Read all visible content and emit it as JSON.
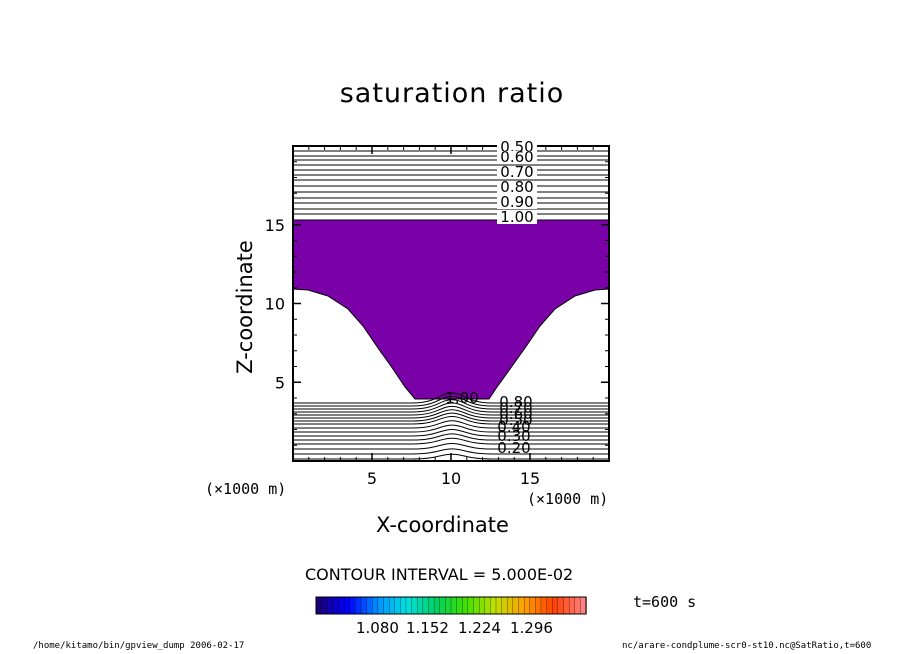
{
  "chart_data": {
    "type": "contour",
    "title": "saturation ratio",
    "xlabel": "X-coordinate",
    "ylabel": "Z-coordinate",
    "x_unit": "(×1000 m)",
    "y_unit": "(×1000 m)",
    "xlim": [
      0,
      20
    ],
    "ylim": [
      0,
      20
    ],
    "x_ticks": [
      5,
      10,
      15
    ],
    "y_ticks": [
      5,
      10,
      15
    ],
    "contour_interval_text": "CONTOUR INTERVAL = 5.000E-02",
    "upper_contour_labels": [
      "0.50",
      "0.60",
      "0.70",
      "0.80",
      "0.90",
      "1.00"
    ],
    "lower_contour_labels": [
      "1.00",
      "0.80",
      "0.70",
      "0.60",
      "0.50",
      "0.40",
      "0.30",
      "0.20"
    ],
    "shaded_region": {
      "color": "#7a00a8",
      "description_value": "saturation ratio > 1.0"
    },
    "colorbar": {
      "tick_labels": [
        "1.080",
        "1.152",
        "1.224",
        "1.296"
      ],
      "colors": [
        "#1a007a",
        "#0000ff",
        "#0090ff",
        "#00e0e0",
        "#00d060",
        "#40e000",
        "#c0e000",
        "#ffa000",
        "#ff4000",
        "#ff8080"
      ]
    },
    "time_label": "t=600 s"
  },
  "footer": {
    "left": "/home/kitamo/bin/gpview_dump   2006-02-17",
    "right": "nc/arare-condplume-scr0-st10.nc@SatRatio,t=600"
  }
}
